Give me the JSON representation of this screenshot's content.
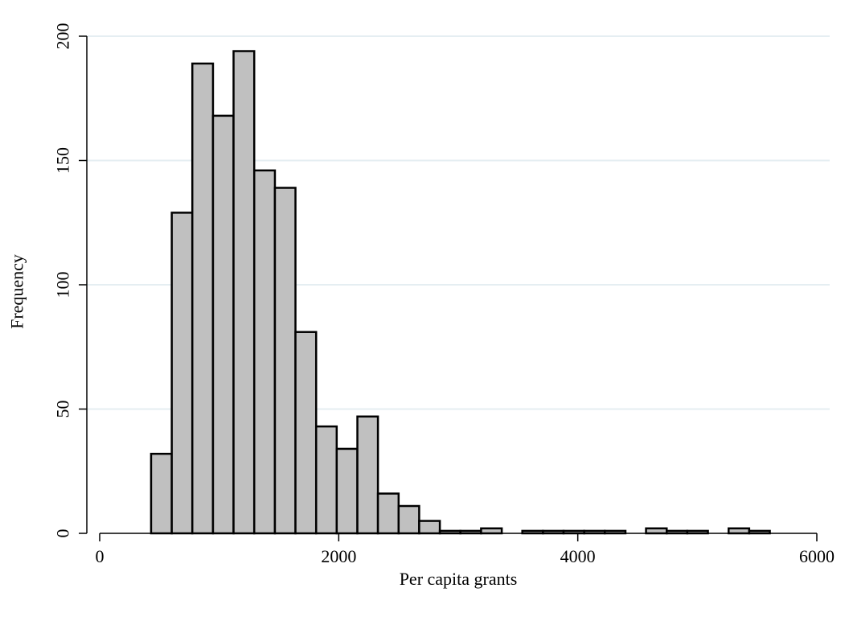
{
  "chart_data": {
    "type": "bar",
    "title": "",
    "xlabel": "Per capita grants",
    "ylabel": "Frequency",
    "xlim": [
      0,
      6000
    ],
    "ylim": [
      0,
      200
    ],
    "x_ticks": [
      0,
      2000,
      4000,
      6000
    ],
    "y_ticks": [
      0,
      50,
      100,
      150,
      200
    ],
    "grid": "horizontal",
    "bin_width": 172.6,
    "bins": [
      {
        "x0": 430,
        "x1": 603,
        "count": 32
      },
      {
        "x0": 603,
        "x1": 775,
        "count": 129
      },
      {
        "x0": 775,
        "x1": 948,
        "count": 189
      },
      {
        "x0": 948,
        "x1": 1120,
        "count": 168
      },
      {
        "x0": 1120,
        "x1": 1293,
        "count": 194
      },
      {
        "x0": 1293,
        "x1": 1466,
        "count": 146
      },
      {
        "x0": 1466,
        "x1": 1638,
        "count": 139
      },
      {
        "x0": 1638,
        "x1": 1811,
        "count": 81
      },
      {
        "x0": 1811,
        "x1": 1983,
        "count": 43
      },
      {
        "x0": 1983,
        "x1": 2156,
        "count": 34
      },
      {
        "x0": 2156,
        "x1": 2328,
        "count": 47
      },
      {
        "x0": 2328,
        "x1": 2501,
        "count": 16
      },
      {
        "x0": 2501,
        "x1": 2673,
        "count": 11
      },
      {
        "x0": 2673,
        "x1": 2846,
        "count": 5
      },
      {
        "x0": 2846,
        "x1": 3018,
        "count": 1
      },
      {
        "x0": 3018,
        "x1": 3191,
        "count": 1
      },
      {
        "x0": 3191,
        "x1": 3364,
        "count": 2
      },
      {
        "x0": 3536,
        "x1": 3709,
        "count": 1
      },
      {
        "x0": 3709,
        "x1": 3881,
        "count": 1
      },
      {
        "x0": 3881,
        "x1": 4054,
        "count": 1
      },
      {
        "x0": 4054,
        "x1": 4226,
        "count": 1
      },
      {
        "x0": 4226,
        "x1": 4399,
        "count": 1
      },
      {
        "x0": 4571,
        "x1": 4744,
        "count": 2
      },
      {
        "x0": 4744,
        "x1": 4916,
        "count": 1
      },
      {
        "x0": 4916,
        "x1": 5089,
        "count": 1
      },
      {
        "x0": 5262,
        "x1": 5434,
        "count": 2
      },
      {
        "x0": 5434,
        "x1": 5607,
        "count": 1
      }
    ]
  }
}
